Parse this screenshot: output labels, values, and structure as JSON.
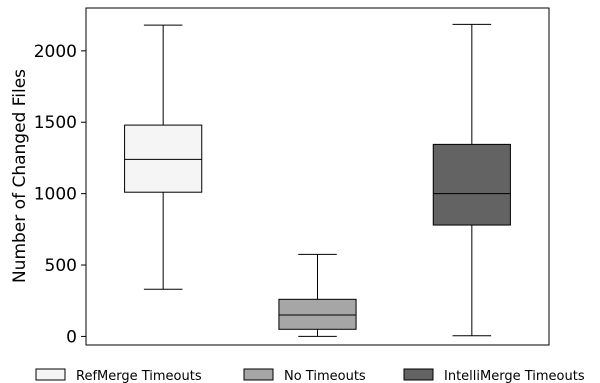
{
  "chart_data": {
    "type": "boxplot",
    "title": "",
    "xlabel": "",
    "ylabel": "Number of Changed Files",
    "ylim": [
      -60,
      2300
    ],
    "yticks": [
      0,
      500,
      1000,
      1500,
      2000
    ],
    "ytick_labels": [
      "0",
      "500",
      "1000",
      "1500",
      "2000"
    ],
    "grid": false,
    "legend_position": "bottom",
    "series": [
      {
        "name": "RefMerge Timeouts",
        "color": "#f5f5f5",
        "whisker_low": 330,
        "q1": 1010,
        "median": 1240,
        "q3": 1480,
        "whisker_high": 2180
      },
      {
        "name": "No Timeouts",
        "color": "#a6a6a6",
        "whisker_low": 0,
        "q1": 50,
        "median": 150,
        "q3": 260,
        "whisker_high": 575
      },
      {
        "name": "IntelliMerge Timeouts",
        "color": "#636363",
        "whisker_low": 5,
        "q1": 780,
        "median": 1000,
        "q3": 1345,
        "whisker_high": 2185
      }
    ]
  }
}
